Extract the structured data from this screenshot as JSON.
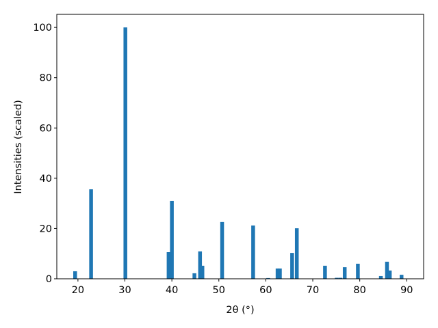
{
  "chart_data": {
    "type": "bar",
    "xlabel": "2θ (°)",
    "ylabel": "Intensities (scaled)",
    "color": "#1f77b4",
    "x": [
      19.4,
      22.8,
      30.1,
      39.3,
      40.0,
      44.8,
      46.0,
      46.5,
      50.7,
      57.3,
      60.5,
      62.5,
      63.0,
      65.6,
      66.6,
      72.6,
      75.1,
      75.9,
      76.8,
      79.6,
      84.5,
      85.8,
      86.4,
      88.9
    ],
    "values": [
      3.0,
      35.6,
      100,
      10.6,
      31.0,
      2.2,
      10.9,
      5.2,
      22.6,
      21.2,
      0.3,
      4.1,
      4.1,
      10.3,
      20.1,
      5.2,
      0.4,
      0.4,
      4.6,
      6.0,
      1.1,
      6.8,
      3.3,
      1.6
    ],
    "xlim": [
      15.5,
      93.6
    ],
    "ylim": [
      0,
      105.2
    ],
    "xticks": [
      20,
      30,
      40,
      50,
      60,
      70,
      80,
      90
    ],
    "yticks": [
      0,
      20,
      40,
      60,
      80,
      100
    ]
  }
}
